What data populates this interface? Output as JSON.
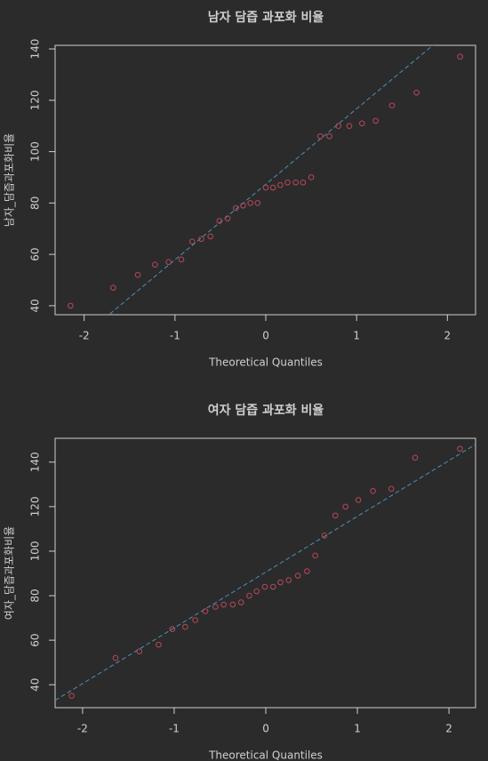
{
  "chart_data": [
    {
      "type": "scatter",
      "title": "남자 담즙 과포화 비율",
      "x_label": "Theoretical Quantiles",
      "y_label": "남자_담즙과포화비율",
      "color": "#b8485a",
      "line_color": "#4e8fb8",
      "x": [
        -2.15,
        -1.68,
        -1.41,
        -1.22,
        -1.07,
        -0.93,
        -0.81,
        -0.71,
        -0.61,
        -0.51,
        -0.42,
        -0.33,
        -0.25,
        -0.17,
        -0.09,
        0,
        0.08,
        0.16,
        0.24,
        0.33,
        0.41,
        0.5,
        0.6,
        0.7,
        0.8,
        0.92,
        1.06,
        1.21,
        1.39,
        1.66,
        2.14
      ],
      "values": [
        40,
        47,
        52,
        56,
        57,
        58,
        65,
        66,
        67,
        73,
        74,
        78,
        79,
        80,
        80,
        86,
        86,
        87,
        88,
        88,
        88,
        90,
        106,
        106,
        110,
        110,
        111,
        112,
        118,
        123,
        137
      ],
      "qqline": {
        "intercept": 87.3,
        "slope": 29.4
      },
      "xlim": [
        -2.32,
        2.31
      ],
      "ylim": [
        36.5,
        141.4
      ],
      "xticks": [
        -2,
        -1,
        0,
        1,
        2
      ],
      "yticks": [
        40,
        60,
        80,
        100,
        120,
        140
      ]
    },
    {
      "type": "scatter",
      "title": "여자 담즙 과포화 비율",
      "x_label": "Theoretical Quantiles",
      "y_label": "여자_담즙과포화비율",
      "color": "#b8485a",
      "line_color": "#4e8fb8",
      "x": [
        -2.12,
        -1.64,
        -1.38,
        -1.17,
        -1.02,
        -0.88,
        -0.77,
        -0.66,
        -0.55,
        -0.46,
        -0.36,
        -0.27,
        -0.18,
        -0.1,
        -0.01,
        0.08,
        0.16,
        0.25,
        0.35,
        0.45,
        0.54,
        0.64,
        0.76,
        0.87,
        1.01,
        1.17,
        1.37,
        1.63,
        2.12
      ],
      "values": [
        35,
        52,
        55,
        58,
        65,
        66,
        69,
        73,
        75,
        76,
        76,
        77,
        80,
        82,
        84,
        84,
        86,
        87,
        89,
        91,
        98,
        107,
        116,
        120,
        123,
        127,
        128,
        142,
        146
      ],
      "qqline": {
        "intercept": 90.6,
        "slope": 25.05
      },
      "xlim": [
        -2.3,
        2.29
      ],
      "ylim": [
        29.7,
        150.7
      ],
      "xticks": [
        -2,
        -1,
        0,
        1,
        2
      ],
      "yticks": [
        40,
        60,
        80,
        100,
        120,
        140
      ]
    }
  ]
}
